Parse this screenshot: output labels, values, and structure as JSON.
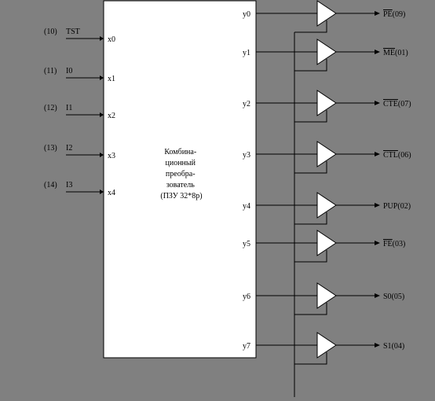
{
  "colors": {
    "background": "#808080",
    "block_fill": "#ffffff",
    "buffer_fill": "#ffffff",
    "line": "#000000"
  },
  "block": {
    "caption": [
      "Комбина-",
      "ционный",
      "преобра-",
      "зователь",
      "(ПЗУ 32*8р)"
    ]
  },
  "inputs": [
    {
      "pin": "(10)",
      "signal": "TST",
      "port": "x0"
    },
    {
      "pin": "(11)",
      "signal": "I0",
      "port": "x1"
    },
    {
      "pin": "(12)",
      "signal": "I1",
      "port": "x2"
    },
    {
      "pin": "(13)",
      "signal": "I2",
      "port": "x3"
    },
    {
      "pin": "(14)",
      "signal": "I3",
      "port": "x4"
    }
  ],
  "outputs": [
    {
      "port": "y0",
      "signal": "PE",
      "pin": "(09)",
      "inverted": true
    },
    {
      "port": "y1",
      "signal": "ME",
      "pin": "(01)",
      "inverted": true
    },
    {
      "port": "y2",
      "signal": "CTE",
      "pin": "(07)",
      "inverted": true
    },
    {
      "port": "y3",
      "signal": "CTL",
      "pin": "(06)",
      "inverted": true
    },
    {
      "port": "y4",
      "signal": "PUP",
      "pin": "(02)",
      "inverted": false
    },
    {
      "port": "y5",
      "signal": "FE",
      "pin": "(03)",
      "inverted": true
    },
    {
      "port": "y6",
      "signal": "S0",
      "pin": "(05)",
      "inverted": false
    },
    {
      "port": "y7",
      "signal": "S1",
      "pin": "(04)",
      "inverted": false
    }
  ]
}
